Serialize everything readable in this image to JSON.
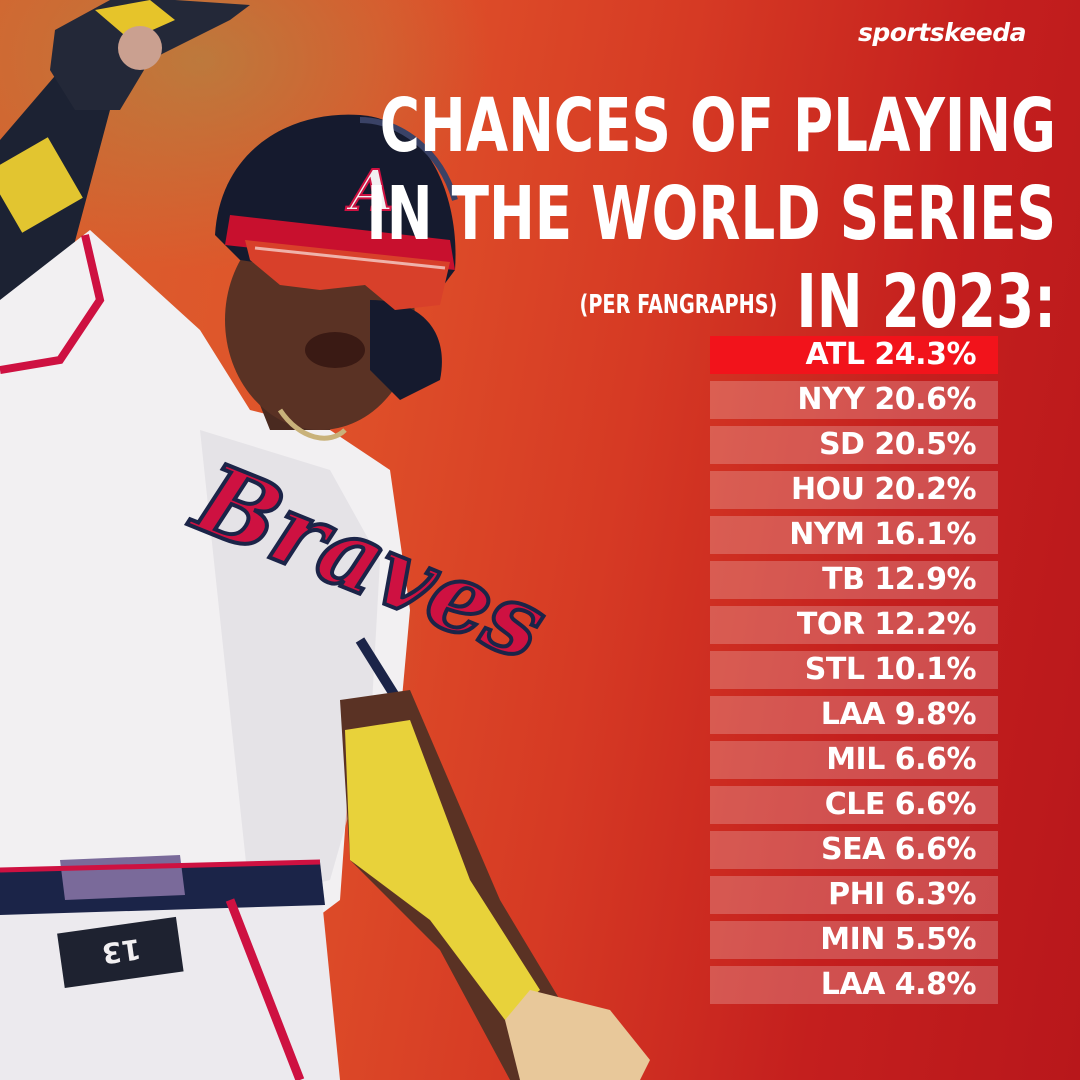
{
  "brand": {
    "name": "sportskeeda"
  },
  "title": {
    "line1": "CHANCES OF PLAYING",
    "line2": "IN THE WORLD SERIES",
    "line3_note": "(PER FANGRAPHS)",
    "line3_main": "IN 2023:"
  },
  "standings": [
    {
      "team": "ATL",
      "pct": "24.3%"
    },
    {
      "team": "NYY",
      "pct": "20.6%"
    },
    {
      "team": "SD",
      "pct": "20.5%"
    },
    {
      "team": "HOU",
      "pct": "20.2%"
    },
    {
      "team": "NYM",
      "pct": "16.1%"
    },
    {
      "team": "TB",
      "pct": "12.9%"
    },
    {
      "team": "TOR",
      "pct": "12.2%"
    },
    {
      "team": "STL",
      "pct": "10.1%"
    },
    {
      "team": "LAA",
      "pct": "9.8%"
    },
    {
      "team": "MIL",
      "pct": "6.6%"
    },
    {
      "team": "CLE",
      "pct": "6.6%"
    },
    {
      "team": "SEA",
      "pct": "6.6%"
    },
    {
      "team": "PHI",
      "pct": "6.3%"
    },
    {
      "team": "MIN",
      "pct": "5.5%"
    },
    {
      "team": "LAA",
      "pct": "4.8%"
    }
  ],
  "player": {
    "helmet_letter": "A",
    "jersey_script": "Braves",
    "number": "13"
  },
  "colors": {
    "highlight_row": "#f2131b",
    "navy": "#1b2448",
    "braves_red": "#ce1141",
    "sleeve_yellow": "#e8d23a"
  }
}
